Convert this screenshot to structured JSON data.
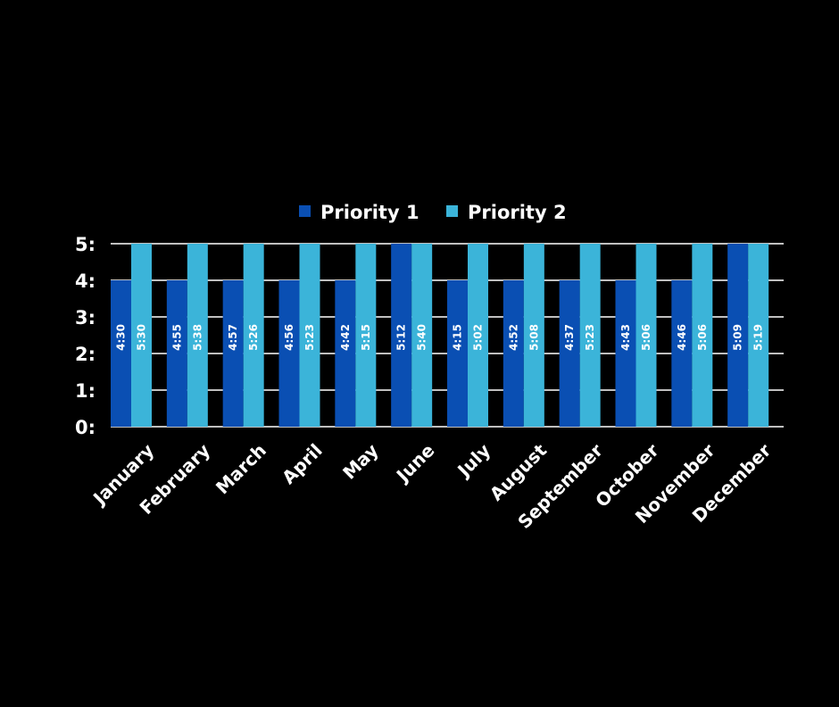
{
  "chart_data": {
    "type": "bar",
    "title": "",
    "xlabel": "",
    "ylabel": "",
    "ylim": [
      0,
      5
    ],
    "y_ticks": [
      "0:",
      "1:",
      "2:",
      "3:",
      "4:",
      "5:"
    ],
    "grid": true,
    "legend_position": "top-center",
    "categories": [
      "January",
      "February",
      "March",
      "April",
      "May",
      "June",
      "July",
      "August",
      "September",
      "October",
      "November",
      "December"
    ],
    "series": [
      {
        "name": "Priority 1",
        "color": "#0a4fb3",
        "values": [
          4,
          4,
          4,
          4,
          4,
          5,
          4,
          4,
          4,
          4,
          4,
          5
        ],
        "labels": [
          "4:30",
          "4:55",
          "4:57",
          "4:56",
          "4:42",
          "5:12",
          "4:15",
          "4:52",
          "4:37",
          "4:43",
          "4:46",
          "5:09"
        ]
      },
      {
        "name": "Priority 2",
        "color": "#3bb4d9",
        "values": [
          5,
          5,
          5,
          5,
          5,
          5,
          5,
          5,
          5,
          5,
          5,
          5
        ],
        "labels": [
          "5:30",
          "5:38",
          "5:26",
          "5:23",
          "5:15",
          "5:40",
          "5:02",
          "5:08",
          "5:23",
          "5:06",
          "5:06",
          "5:19"
        ]
      }
    ]
  }
}
